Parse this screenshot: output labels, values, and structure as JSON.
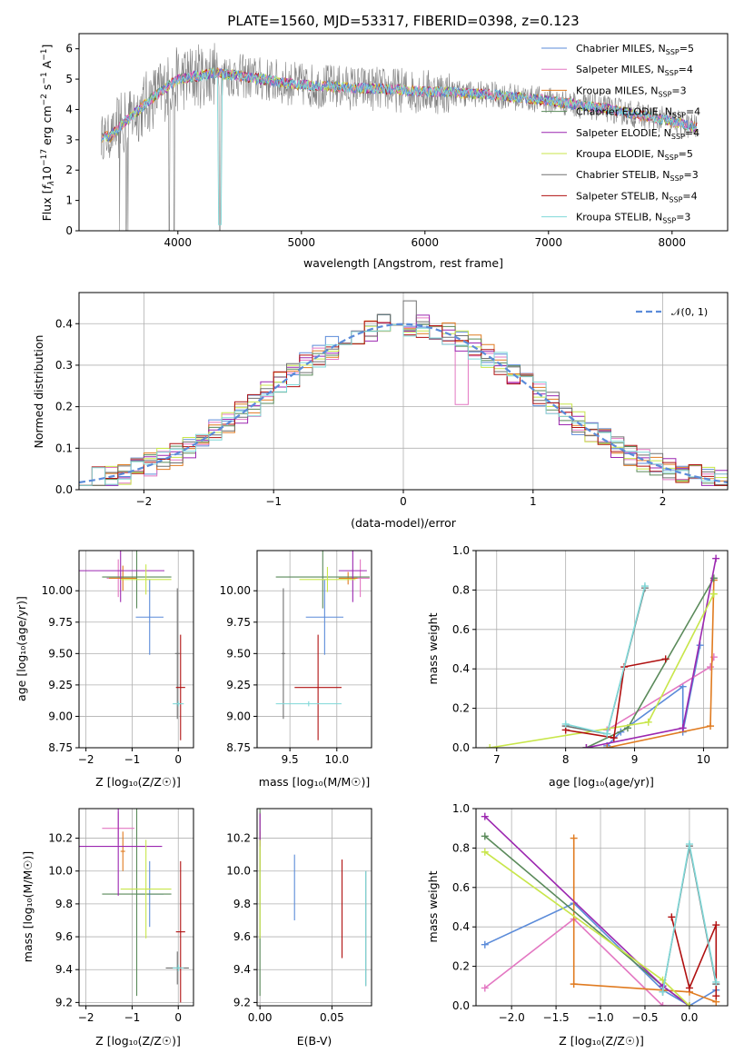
{
  "colors": {
    "chabrier_miles": "#5b8bd9",
    "salpeter_miles": "#e377c2",
    "kroupa_miles": "#e07b20",
    "chabrier_elodie": "#5a8a5a",
    "salpeter_elodie": "#9c27b0",
    "kroupa_elodie": "#c8e64a",
    "chabrier_stelib": "#707070",
    "salpeter_stelib": "#b01010",
    "kroupa_stelib": "#7fd8d8"
  },
  "chart_data": [
    {
      "id": "spectrum",
      "type": "line",
      "title": "PLATE=1560, MJD=53317, FIBERID=0398, z=0.123",
      "xlabel": "wavelength [Angstrom, rest frame]",
      "ylabel": "Flux [fλ10⁻¹⁷ erg cm⁻² s⁻¹ A⁻¹]",
      "xlim": [
        3200,
        8450
      ],
      "ylim": [
        0,
        6.5
      ],
      "xticks": [
        "4000",
        "5000",
        "6000",
        "7000",
        "8000"
      ],
      "yticks": [
        "0",
        "1",
        "2",
        "3",
        "4",
        "5",
        "6"
      ],
      "grid": false,
      "legend_position": "top-right",
      "legend": [
        {
          "key": "chabrier_miles",
          "label": "Chabrier MILES, N",
          "sub": "SSP",
          "tail": "=5"
        },
        {
          "key": "salpeter_miles",
          "label": "Salpeter MILES, N",
          "sub": "SSP",
          "tail": "=4"
        },
        {
          "key": "kroupa_miles",
          "label": "Kroupa MILES, N",
          "sub": "SSP",
          "tail": "=3"
        },
        {
          "key": "chabrier_elodie",
          "label": "Chabrier ELODIE, N",
          "sub": "SSP",
          "tail": "=4"
        },
        {
          "key": "salpeter_elodie",
          "label": "Salpeter ELODIE, N",
          "sub": "SSP",
          "tail": "=4"
        },
        {
          "key": "kroupa_elodie",
          "label": "Kroupa ELODIE, N",
          "sub": "SSP",
          "tail": "=5"
        },
        {
          "key": "chabrier_stelib",
          "label": "Chabrier STELIB, N",
          "sub": "SSP",
          "tail": "=3"
        },
        {
          "key": "salpeter_stelib",
          "label": "Salpeter STELIB, N",
          "sub": "SSP",
          "tail": "=4"
        },
        {
          "key": "kroupa_stelib",
          "label": "Kroupa STELIB, N",
          "sub": "SSP",
          "tail": "=3"
        }
      ],
      "continuum": [
        [
          3380,
          3.1
        ],
        [
          3450,
          3.1
        ],
        [
          3600,
          3.7
        ],
        [
          3800,
          4.4
        ],
        [
          4000,
          5.0
        ],
        [
          4300,
          5.2
        ],
        [
          4500,
          5.1
        ],
        [
          5000,
          4.8
        ],
        [
          5500,
          4.7
        ],
        [
          6000,
          4.6
        ],
        [
          6500,
          4.5
        ],
        [
          7000,
          4.3
        ],
        [
          7500,
          4.0
        ],
        [
          8000,
          3.6
        ],
        [
          8200,
          3.4
        ]
      ]
    },
    {
      "id": "residuals",
      "type": "step",
      "xlabel": "(data-model)/error",
      "ylabel": "Normed distribution",
      "xlim": [
        -2.5,
        2.5
      ],
      "ylim": [
        0,
        0.475
      ],
      "xticks": [
        -2,
        -1,
        0,
        1,
        2
      ],
      "yticks": [
        0.0,
        0.1,
        0.2,
        0.3,
        0.4
      ],
      "grid": true,
      "legend_position": "top-right",
      "reference_label": "𝒩(0, 1)",
      "reference_color": "#5b8bd9"
    },
    {
      "id": "age_vs_Z",
      "type": "errorbar",
      "xlabel": "Z [log₁₀(Z/Z☉)]",
      "ylabel": "age  [log₁₀(age/yr)]",
      "xlim": [
        -2.15,
        0.33
      ],
      "ylim": [
        8.75,
        10.32
      ],
      "xticks": [
        -2,
        -1,
        0
      ],
      "yticks": [
        8.75,
        9.0,
        9.25,
        9.5,
        9.75,
        10.0
      ],
      "grid": true,
      "points": [
        {
          "key": "chabrier_miles",
          "x": -0.62,
          "y": 9.79,
          "xerr": 0.3,
          "yerr": 0.3
        },
        {
          "key": "salpeter_miles",
          "x": -1.3,
          "y": 10.1,
          "xerr": 0.25,
          "yerr": 0.15
        },
        {
          "key": "kroupa_miles",
          "x": -1.2,
          "y": 10.1,
          "xerr": 0.3,
          "yerr": 0.1
        },
        {
          "key": "chabrier_elodie",
          "x": -0.9,
          "y": 10.11,
          "xerr": 0.75,
          "yerr": 0.25
        },
        {
          "key": "salpeter_elodie",
          "x": -1.25,
          "y": 10.16,
          "xerr": 0.95,
          "yerr": 0.25
        },
        {
          "key": "kroupa_elodie",
          "x": -0.7,
          "y": 10.09,
          "xerr": 0.55,
          "yerr": 0.12
        },
        {
          "key": "chabrier_stelib",
          "x": -0.02,
          "y": 9.5,
          "xerr": 0.05,
          "yerr": 0.52
        },
        {
          "key": "salpeter_stelib",
          "x": 0.05,
          "y": 9.23,
          "xerr": 0.1,
          "yerr": 0.42
        },
        {
          "key": "kroupa_stelib",
          "x": 0.0,
          "y": 9.1,
          "xerr": 0.12,
          "yerr": 0.02
        }
      ]
    },
    {
      "id": "age_vs_mass",
      "type": "errorbar",
      "xlabel": "mass [log₁₀(M/M☉)]",
      "ylabel": "",
      "xlim": [
        9.15,
        10.37
      ],
      "ylim": [
        8.75,
        10.32
      ],
      "xticks": [
        9.5,
        10.0
      ],
      "yticks": [
        8.75,
        9.0,
        9.25,
        9.5,
        9.75,
        10.0
      ],
      "grid": true,
      "points": [
        {
          "key": "chabrier_miles",
          "x": 9.87,
          "y": 9.79,
          "xerr": 0.2,
          "yerr": 0.3
        },
        {
          "key": "salpeter_miles",
          "x": 10.25,
          "y": 10.1,
          "xerr": 0.1,
          "yerr": 0.15
        },
        {
          "key": "kroupa_miles",
          "x": 10.12,
          "y": 10.1,
          "xerr": 0.1,
          "yerr": 0.05
        },
        {
          "key": "chabrier_elodie",
          "x": 9.85,
          "y": 10.11,
          "xerr": 0.5,
          "yerr": 0.25
        },
        {
          "key": "salpeter_elodie",
          "x": 10.17,
          "y": 10.16,
          "xerr": 0.15,
          "yerr": 0.25
        },
        {
          "key": "kroupa_elodie",
          "x": 9.9,
          "y": 10.09,
          "xerr": 0.3,
          "yerr": 0.1
        },
        {
          "key": "chabrier_stelib",
          "x": 9.43,
          "y": 9.5,
          "xerr": 0.02,
          "yerr": 0.52
        },
        {
          "key": "salpeter_stelib",
          "x": 9.8,
          "y": 9.23,
          "xerr": 0.25,
          "yerr": 0.42
        },
        {
          "key": "kroupa_stelib",
          "x": 9.7,
          "y": 9.1,
          "xerr": 0.35,
          "yerr": 0.02
        }
      ]
    },
    {
      "id": "weight_vs_age",
      "type": "line",
      "xlabel": "age  [log₁₀(age/yr)]",
      "ylabel": "mass weight",
      "xlim": [
        6.7,
        10.35
      ],
      "ylim": [
        0,
        1.0
      ],
      "xticks": [
        7,
        8,
        9,
        10
      ],
      "yticks": [
        0.0,
        0.2,
        0.4,
        0.6,
        0.8,
        1.0
      ],
      "grid": true,
      "series": [
        {
          "key": "chabrier_miles",
          "x": [
            8.6,
            8.8,
            9.7,
            9.7,
            9.95
          ],
          "y": [
            0.01,
            0.08,
            0.31,
            0.08,
            0.52
          ]
        },
        {
          "key": "salpeter_miles",
          "x": [
            8.6,
            10.1,
            10.15
          ],
          "y": [
            0.09,
            0.41,
            0.46
          ]
        },
        {
          "key": "kroupa_miles",
          "x": [
            8.6,
            10.1,
            10.15
          ],
          "y": [
            0.0,
            0.11,
            0.85
          ]
        },
        {
          "key": "chabrier_elodie",
          "x": [
            8.3,
            8.9,
            10.15
          ],
          "y": [
            0.0,
            0.1,
            0.86
          ]
        },
        {
          "key": "salpeter_elodie",
          "x": [
            8.3,
            9.7,
            10.18
          ],
          "y": [
            0.0,
            0.1,
            0.96
          ]
        },
        {
          "key": "kroupa_elodie",
          "x": [
            6.9,
            9.2,
            10.15
          ],
          "y": [
            0.0,
            0.13,
            0.78
          ]
        },
        {
          "key": "chabrier_stelib",
          "x": [
            8.0,
            8.6,
            9.15
          ],
          "y": [
            0.11,
            0.07,
            0.81
          ]
        },
        {
          "key": "salpeter_stelib",
          "x": [
            8.0,
            8.7,
            8.85,
            9.45
          ],
          "y": [
            0.09,
            0.05,
            0.41,
            0.45
          ]
        },
        {
          "key": "kroupa_stelib",
          "x": [
            8.0,
            8.6,
            9.15
          ],
          "y": [
            0.12,
            0.07,
            0.82
          ]
        }
      ]
    },
    {
      "id": "mass_vs_Z",
      "type": "errorbar",
      "xlabel": "Z [log₁₀(Z/Z☉)]",
      "ylabel": "mass [log₁₀(M/M☉)]",
      "xlim": [
        -2.15,
        0.33
      ],
      "ylim": [
        9.18,
        10.38
      ],
      "xticks": [
        -2,
        -1,
        0
      ],
      "yticks": [
        9.2,
        9.4,
        9.6,
        9.8,
        10.0,
        10.2
      ],
      "grid": true,
      "points": [
        {
          "key": "chabrier_miles",
          "x": -0.62,
          "y": 9.86,
          "xerr": 0.3,
          "yerr": 0.2
        },
        {
          "key": "salpeter_miles",
          "x": -1.3,
          "y": 10.26,
          "xerr": 0.35,
          "yerr": 0.1
        },
        {
          "key": "kroupa_miles",
          "x": -1.2,
          "y": 10.12,
          "xerr": 0.05,
          "yerr": 0.12
        },
        {
          "key": "chabrier_elodie",
          "x": -0.9,
          "y": 9.86,
          "xerr": 0.75,
          "yerr": 0.62
        },
        {
          "key": "salpeter_elodie",
          "x": -1.3,
          "y": 10.15,
          "xerr": 0.95,
          "yerr": 0.3
        },
        {
          "key": "kroupa_elodie",
          "x": -0.7,
          "y": 9.89,
          "xerr": 0.55,
          "yerr": 0.3
        },
        {
          "key": "chabrier_stelib",
          "x": -0.02,
          "y": 9.41,
          "xerr": 0.25,
          "yerr": 0.1
        },
        {
          "key": "salpeter_stelib",
          "x": 0.05,
          "y": 9.63,
          "xerr": 0.1,
          "yerr": 0.43
        },
        {
          "key": "kroupa_stelib",
          "x": 0.0,
          "y": 9.41,
          "xerr": 0.12,
          "yerr": 0.02
        }
      ]
    },
    {
      "id": "mass_vs_ebv",
      "type": "errorbar",
      "xlabel": "E(B-V)",
      "ylabel": "",
      "xlim": [
        -0.002,
        0.0775
      ],
      "ylim": [
        9.18,
        10.38
      ],
      "xticks": [
        0.0,
        0.05
      ],
      "yticks": [
        9.2,
        9.4,
        9.6,
        9.8,
        10.0,
        10.2
      ],
      "grid": true,
      "points": [
        {
          "key": "chabrier_miles",
          "x": 0.024,
          "y": 9.9,
          "xerr": 0,
          "yerr": 0.2
        },
        {
          "key": "salpeter_miles",
          "x": 0.0,
          "y": 10.26,
          "xerr": 0,
          "yerr": 0.1
        },
        {
          "key": "kroupa_miles",
          "x": 0.0,
          "y": 10.12,
          "xerr": 0,
          "yerr": 0.12
        },
        {
          "key": "chabrier_elodie",
          "x": 0.0,
          "y": 9.86,
          "xerr": 0,
          "yerr": 0.62
        },
        {
          "key": "salpeter_elodie",
          "x": 0.0,
          "y": 10.25,
          "xerr": 0,
          "yerr": 0.1
        },
        {
          "key": "kroupa_elodie",
          "x": 0.0,
          "y": 9.89,
          "xerr": 0,
          "yerr": 0.3
        },
        {
          "key": "chabrier_stelib",
          "x": 0.0735,
          "y": 9.65,
          "xerr": 0,
          "yerr": 0.35
        },
        {
          "key": "salpeter_stelib",
          "x": 0.057,
          "y": 9.77,
          "xerr": 0,
          "yerr": 0.3
        },
        {
          "key": "kroupa_stelib",
          "x": 0.0735,
          "y": 9.65,
          "xerr": 0,
          "yerr": 0.35
        }
      ]
    },
    {
      "id": "weight_vs_Z",
      "type": "line",
      "xlabel": "Z [log₁₀(Z/Z☉)]",
      "ylabel": "mass weight",
      "xlim": [
        -2.4,
        0.43
      ],
      "ylim": [
        0,
        1.0
      ],
      "xticks": [
        -2.0,
        -1.5,
        -1.0,
        -0.5,
        0.0
      ],
      "yticks": [
        0.0,
        0.2,
        0.4,
        0.6,
        0.8,
        1.0
      ],
      "grid": true,
      "series": [
        {
          "key": "chabrier_miles",
          "x": [
            -2.3,
            -1.3,
            -0.3,
            0.0,
            0.3
          ],
          "y": [
            0.31,
            0.52,
            0.08,
            0.0,
            0.08
          ]
        },
        {
          "key": "salpeter_miles",
          "x": [
            -2.3,
            -1.3,
            -0.3,
            0.0
          ],
          "y": [
            0.09,
            0.44,
            0.0,
            0.0
          ]
        },
        {
          "key": "kroupa_miles",
          "x": [
            -1.3,
            -1.3,
            0.0,
            0.3
          ],
          "y": [
            0.85,
            0.11,
            0.07,
            0.02
          ]
        },
        {
          "key": "chabrier_elodie",
          "x": [
            -2.3,
            -0.3,
            0.0
          ],
          "y": [
            0.86,
            0.1,
            0.0
          ]
        },
        {
          "key": "salpeter_elodie",
          "x": [
            -2.3,
            -0.3,
            0.0
          ],
          "y": [
            0.96,
            0.1,
            0.0
          ]
        },
        {
          "key": "kroupa_elodie",
          "x": [
            -2.3,
            -0.3,
            0.0
          ],
          "y": [
            0.78,
            0.13,
            0.0
          ]
        },
        {
          "key": "chabrier_stelib",
          "x": [
            -0.3,
            0.0,
            0.3
          ],
          "y": [
            0.07,
            0.81,
            0.11
          ]
        },
        {
          "key": "salpeter_stelib",
          "x": [
            -0.2,
            0.0,
            0.3,
            0.3
          ],
          "y": [
            0.45,
            0.09,
            0.41,
            0.05
          ]
        },
        {
          "key": "kroupa_stelib",
          "x": [
            -0.3,
            0.0,
            0.3
          ],
          "y": [
            0.07,
            0.82,
            0.12
          ]
        }
      ]
    }
  ]
}
